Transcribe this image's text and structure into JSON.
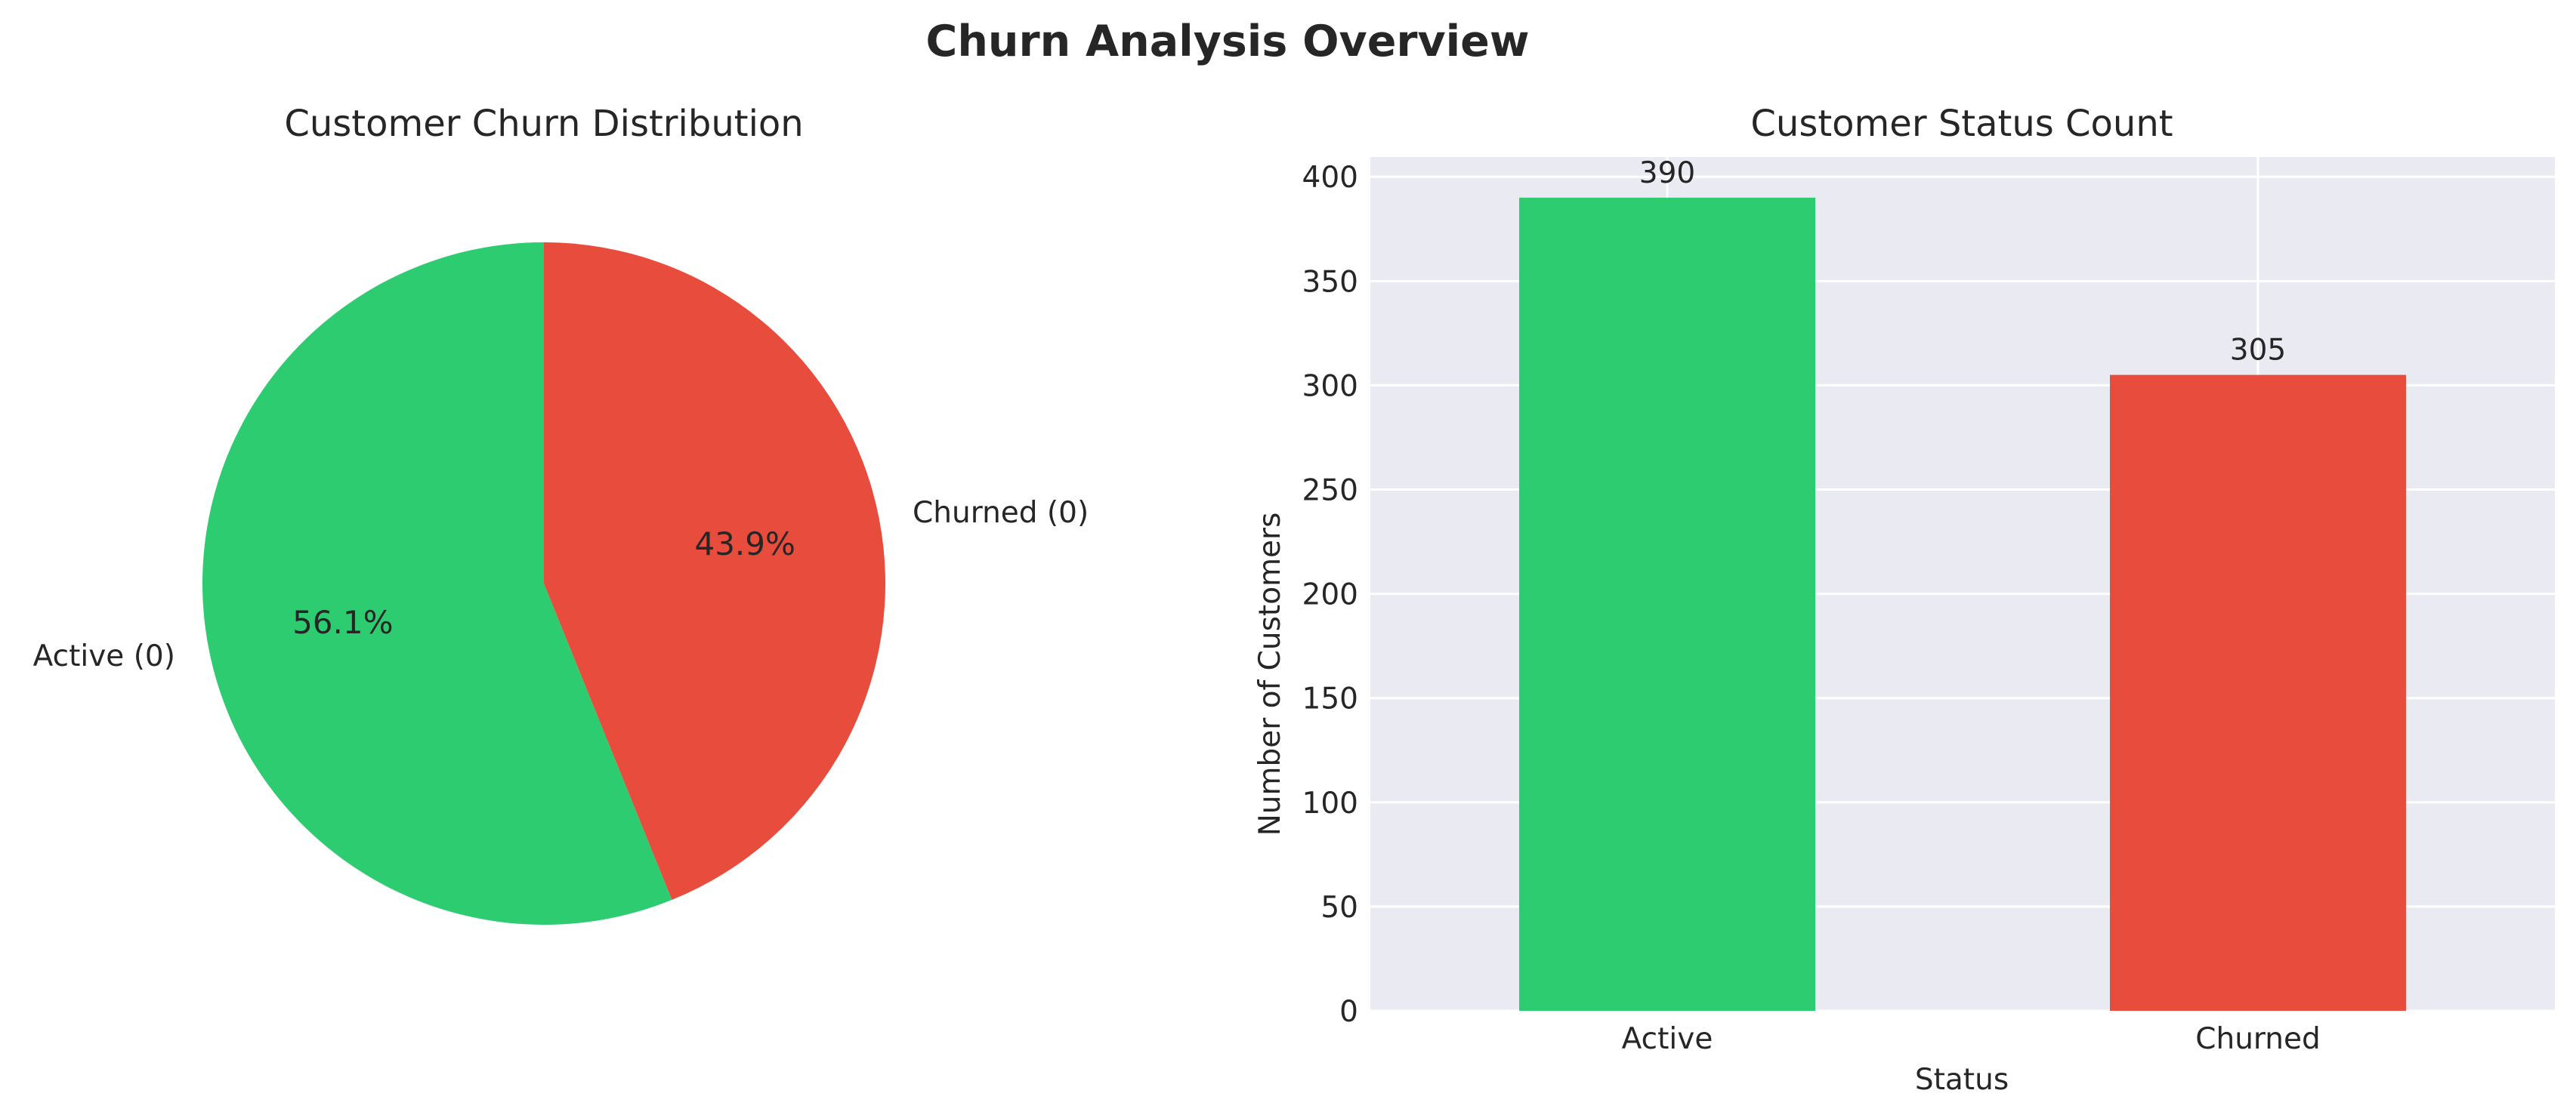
{
  "figure": {
    "title": "Churn Analysis Overview"
  },
  "colors": {
    "active": "#2ecc71",
    "churned": "#e74c3c",
    "axes_bg": "#eaeaf2",
    "grid": "#ffffff",
    "text": "#262626"
  },
  "chart_data": [
    {
      "type": "pie",
      "title": "Customer Churn Distribution",
      "labels": [
        "Active (0)",
        "Churned (0)"
      ],
      "values": [
        390,
        305
      ],
      "percent_labels": [
        "56.1%",
        "43.9%"
      ],
      "colors": [
        "#2ecc71",
        "#e74c3c"
      ],
      "start_angle_deg": 90,
      "direction": "counterclockwise"
    },
    {
      "type": "bar",
      "title": "Customer Status Count",
      "categories": [
        "Active",
        "Churned"
      ],
      "values": [
        390,
        305
      ],
      "value_labels": [
        "390",
        "305"
      ],
      "colors": [
        "#2ecc71",
        "#e74c3c"
      ],
      "xlabel": "Status",
      "ylabel": "Number of Customers",
      "ylim": [
        0,
        409.5
      ],
      "yticks": [
        0,
        50,
        100,
        150,
        200,
        250,
        300,
        350,
        400
      ],
      "grid": true
    }
  ]
}
